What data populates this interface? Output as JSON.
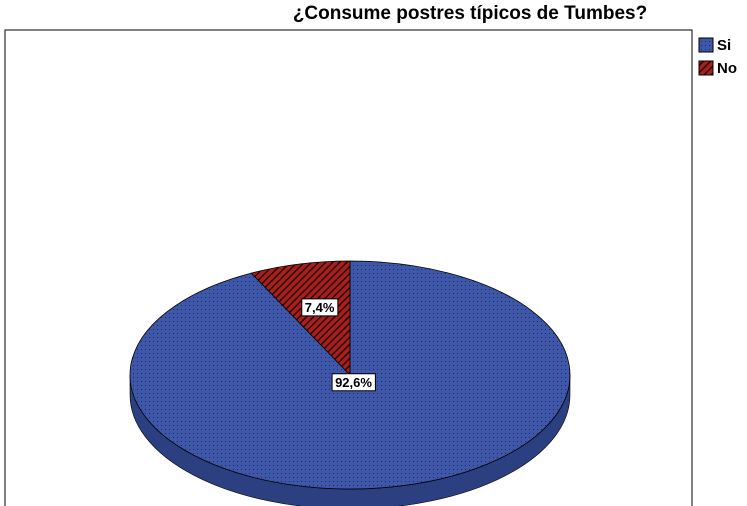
{
  "chart_data": {
    "type": "pie",
    "title": "¿Consume postres típicos de Tumbes?",
    "categories": [
      "Si",
      "No"
    ],
    "values": [
      92.6,
      7.4
    ],
    "value_labels": [
      "92,6%",
      "7,4%"
    ],
    "colors": [
      "#3f57a8",
      "#a8201c"
    ],
    "legend": "right"
  }
}
